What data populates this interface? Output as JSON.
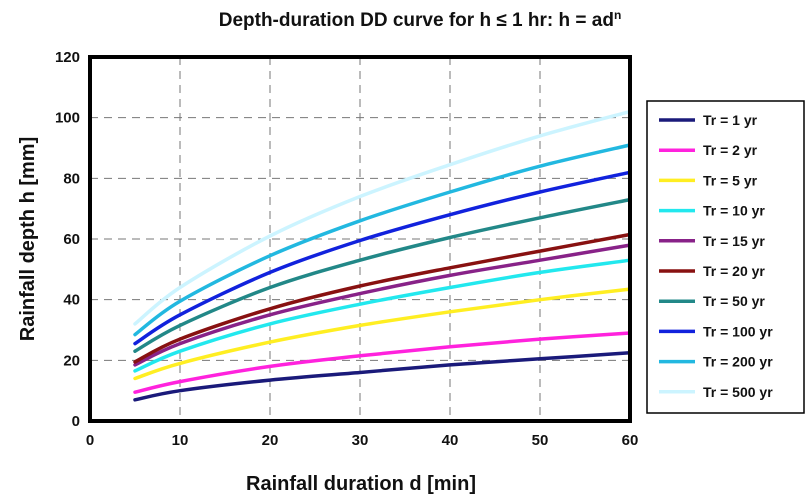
{
  "chart_data": {
    "type": "line",
    "title": "Depth-duration DD curve for h ≤ 1 hr: h = ad",
    "title_superscript": "n",
    "xlabel": "Rainfall duration d [min]",
    "ylabel": "Rainfall depth h [mm]",
    "xlim": [
      0,
      60
    ],
    "ylim": [
      0,
      120
    ],
    "xticks": [
      0,
      10,
      20,
      30,
      40,
      50,
      60
    ],
    "yticks": [
      0,
      20,
      40,
      60,
      80,
      100,
      120
    ],
    "grid": true,
    "legend_position": "right",
    "x": [
      5,
      10,
      20,
      30,
      40,
      50,
      60
    ],
    "series": [
      {
        "name": "Tr = 1 yr",
        "color": "#1a1a7a",
        "values": [
          7,
          10,
          13.5,
          16,
          18.5,
          20.5,
          22.5
        ]
      },
      {
        "name": "Tr = 2 yr",
        "color": "#ff22dd",
        "values": [
          9.5,
          13,
          18,
          21.5,
          24.5,
          27,
          29
        ]
      },
      {
        "name": "Tr = 5 yr",
        "color": "#ffee22",
        "values": [
          14,
          19,
          26,
          31.5,
          36,
          40,
          43.5
        ]
      },
      {
        "name": "Tr = 10 yr",
        "color": "#22e8ee",
        "values": [
          16.5,
          23,
          32,
          38.5,
          44,
          49,
          53
        ]
      },
      {
        "name": "Tr = 15 yr",
        "color": "#882288",
        "values": [
          18.5,
          25.5,
          35,
          42,
          48,
          53,
          58
        ]
      },
      {
        "name": "Tr = 20 yr",
        "color": "#881111",
        "values": [
          19.5,
          27,
          37,
          44.5,
          50.5,
          56,
          61.5
        ]
      },
      {
        "name": "Tr = 50 yr",
        "color": "#228888",
        "values": [
          23,
          31.5,
          44,
          53,
          60.5,
          67,
          73
        ]
      },
      {
        "name": "Tr = 100 yr",
        "color": "#1122dd",
        "values": [
          25.5,
          35,
          49,
          59.5,
          68,
          75.5,
          82
        ]
      },
      {
        "name": "Tr = 200 yr",
        "color": "#22b8e0",
        "values": [
          28.5,
          39.5,
          54.5,
          66,
          75.5,
          84,
          91
        ]
      },
      {
        "name": "Tr = 500 yr",
        "color": "#ccf4ff",
        "values": [
          32,
          44,
          61,
          74,
          84.5,
          94,
          102
        ]
      }
    ]
  }
}
